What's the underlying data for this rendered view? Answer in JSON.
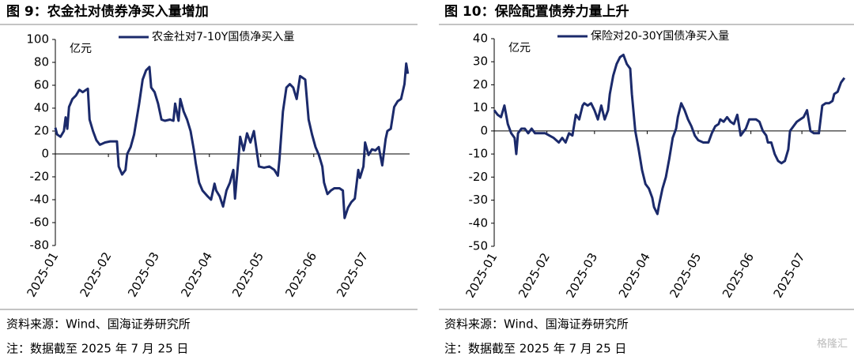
{
  "chart_data": [
    {
      "type": "line",
      "title": "图 9：农金社对债券净买入量增加",
      "unit": "亿元",
      "source": "资料来源：Wind、国海证券研究所",
      "note": "注：数据截至 2025 年 7 月 25 日",
      "xlim": [
        0,
        207
      ],
      "xticks": [
        {
          "value": 0,
          "label": "2025-01"
        },
        {
          "value": 31,
          "label": "2025-02"
        },
        {
          "value": 59,
          "label": "2025-03"
        },
        {
          "value": 90,
          "label": "2025-04"
        },
        {
          "value": 120,
          "label": "2025-05"
        },
        {
          "value": 151,
          "label": "2025-06"
        },
        {
          "value": 181,
          "label": "2025-07"
        }
      ],
      "ylim": [
        -80,
        100
      ],
      "yticks": [
        -80,
        -60,
        -40,
        -20,
        0,
        20,
        40,
        60,
        80,
        100
      ],
      "x": [
        0,
        1,
        3,
        5,
        6,
        7,
        8,
        10,
        12,
        14,
        16,
        18,
        19,
        20,
        22,
        24,
        26,
        29,
        32,
        36,
        37,
        39,
        41,
        42,
        44,
        46,
        49,
        51,
        53,
        55,
        56,
        58,
        60,
        62,
        64,
        67,
        69,
        70,
        72,
        73,
        75,
        77,
        79,
        81,
        82,
        84,
        86,
        89,
        91,
        93,
        94,
        96,
        98,
        100,
        102,
        104,
        105,
        107,
        108,
        110,
        112,
        114,
        116,
        118,
        119,
        122,
        125,
        128,
        130,
        131,
        133,
        135,
        137,
        139,
        141,
        143,
        144,
        146,
        148,
        150,
        152,
        154,
        156,
        157,
        159,
        161,
        163,
        166,
        168,
        169,
        171,
        173,
        175,
        177,
        178,
        180,
        181,
        183,
        185,
        187,
        189,
        191,
        193,
        194,
        196,
        198,
        200,
        202,
        204,
        205,
        206
      ],
      "series": [
        {
          "name": "农金社对7-10Y国债净买入量",
          "color": "#1b2a6b",
          "values": [
            23,
            17,
            15,
            20,
            32,
            22,
            41,
            48,
            51,
            56,
            54,
            56,
            57,
            30,
            20,
            12,
            8,
            10,
            11,
            11,
            -11,
            -18,
            -14,
            0,
            6,
            17,
            44,
            65,
            73,
            76,
            58,
            54,
            44,
            30,
            29,
            30,
            29,
            44,
            29,
            48,
            37,
            30,
            20,
            3,
            -8,
            -25,
            -32,
            -37,
            -40,
            -26,
            -32,
            -37,
            -46,
            -32,
            -25,
            -14,
            -39,
            -4,
            15,
            3,
            18,
            10,
            20,
            -1,
            -11,
            -12,
            -11,
            -14,
            -19,
            -4,
            37,
            58,
            61,
            58,
            48,
            68,
            67,
            65,
            30,
            17,
            6,
            -1,
            -11,
            -25,
            -35,
            -32,
            -30,
            -30,
            -32,
            -56,
            -47,
            -42,
            -39,
            -14,
            -21,
            -11,
            10,
            -1,
            4,
            3,
            6,
            -10,
            13,
            20,
            22,
            41,
            46,
            48,
            61,
            79,
            70
          ]
        }
      ]
    },
    {
      "type": "line",
      "title": "图 10：保险配置债券力量上升",
      "unit": "亿元",
      "source": "资料来源：Wind、国海证券研究所",
      "note": "注：数据截至 2025 年 7 月 25 日",
      "xlim": [
        0,
        207
      ],
      "xticks": [
        {
          "value": 0,
          "label": "2025-01"
        },
        {
          "value": 31,
          "label": "2025-02"
        },
        {
          "value": 59,
          "label": "2025-03"
        },
        {
          "value": 90,
          "label": "2025-04"
        },
        {
          "value": 120,
          "label": "2025-05"
        },
        {
          "value": 151,
          "label": "2025-06"
        },
        {
          "value": 181,
          "label": "2025-07"
        }
      ],
      "ylim": [
        -50,
        40
      ],
      "yticks": [
        -50,
        -40,
        -30,
        -20,
        -10,
        0,
        10,
        20,
        30,
        40
      ],
      "x": [
        0,
        2,
        4,
        6,
        8,
        10,
        12,
        13,
        14,
        16,
        18,
        20,
        22,
        24,
        26,
        30,
        35,
        38,
        40,
        42,
        44,
        46,
        48,
        50,
        52,
        53,
        55,
        57,
        59,
        61,
        63,
        65,
        67,
        68,
        70,
        72,
        74,
        76,
        78,
        80,
        81,
        83,
        85,
        87,
        89,
        91,
        93,
        94,
        96,
        97,
        99,
        101,
        103,
        105,
        107,
        108,
        110,
        112,
        114,
        116,
        118,
        120,
        123,
        126,
        128,
        130,
        132,
        133,
        135,
        137,
        139,
        141,
        143,
        145,
        147,
        148,
        150,
        152,
        154,
        156,
        158,
        160,
        161,
        163,
        165,
        167,
        169,
        171,
        173,
        174,
        176,
        178,
        180,
        182,
        184,
        186,
        188,
        190,
        191,
        193,
        195,
        197,
        199,
        200,
        202,
        204,
        206
      ],
      "series": [
        {
          "name": "保险对20-30Y国债净买入量",
          "color": "#1b2a6b",
          "values": [
            9,
            7,
            6,
            11,
            3,
            -1,
            -3,
            -10,
            -1,
            1,
            1,
            -1,
            1,
            -1,
            -1,
            -1,
            -3,
            -5,
            -3,
            -5,
            -1,
            -2,
            7,
            5,
            11,
            12,
            11,
            12,
            9,
            5,
            11,
            5,
            9,
            16,
            24,
            29,
            32,
            33,
            29,
            27,
            16,
            0,
            -8,
            -17,
            -23,
            -25,
            -29,
            -33,
            -36,
            -32,
            -25,
            -20,
            -12,
            -3,
            1,
            6,
            12,
            9,
            5,
            2,
            -2,
            -4,
            -5,
            -5,
            -1,
            2,
            3,
            5,
            4,
            6,
            4,
            3,
            7,
            -2,
            0,
            1,
            5,
            5,
            5,
            4,
            0,
            -2,
            -5,
            -5,
            -10,
            -13,
            -14,
            -13,
            -8,
            0,
            2,
            4,
            5,
            6,
            9,
            0,
            -1,
            -1,
            -1,
            11,
            12,
            12,
            13,
            16,
            17,
            21,
            23
          ]
        }
      ]
    }
  ],
  "watermark": "格隆汇"
}
